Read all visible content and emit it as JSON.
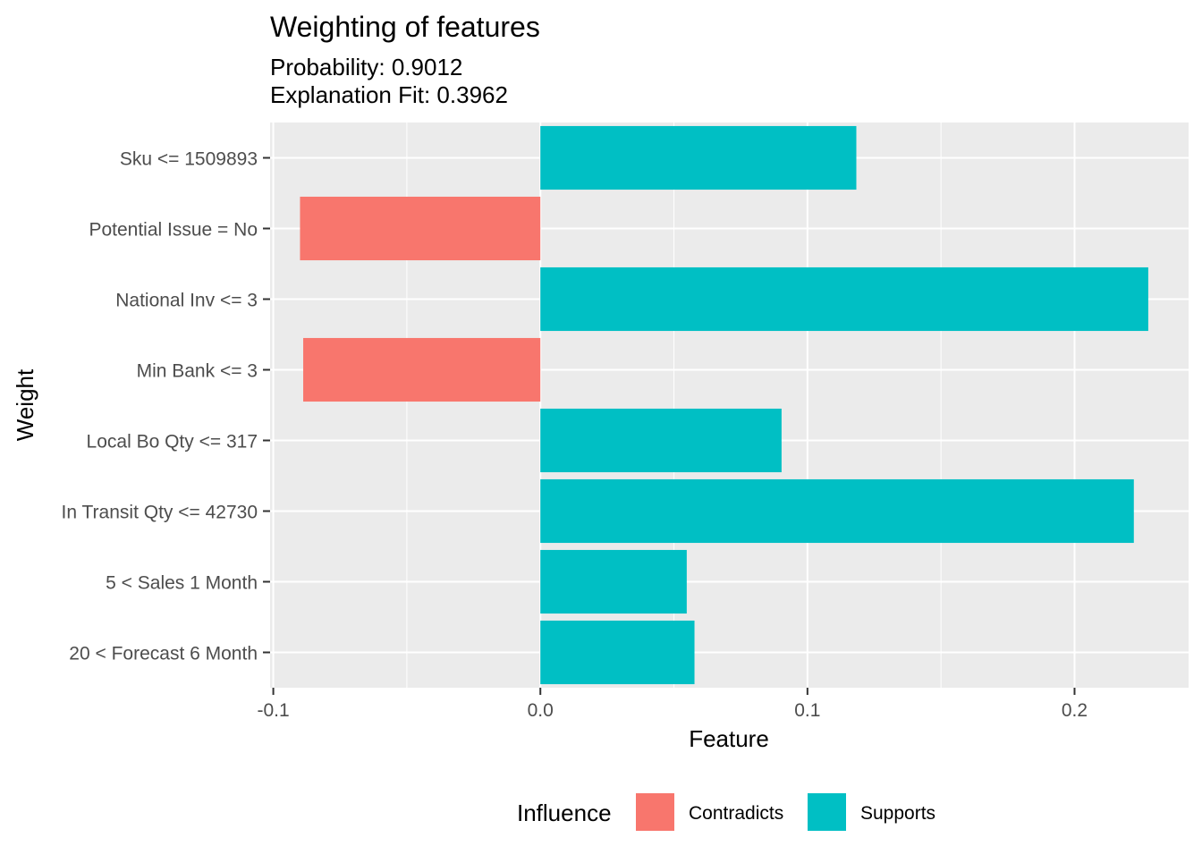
{
  "chart_data": {
    "type": "bar",
    "orientation": "horizontal",
    "title": "Weighting of features",
    "subtitle_lines": [
      "Probability: 0.9012",
      "Explanation Fit: 0.3962"
    ],
    "xlabel": "Feature",
    "ylabel": "Weight",
    "xlim": [
      -0.1012,
      0.2427
    ],
    "xticks": [
      -0.1,
      0.0,
      0.1,
      0.2
    ],
    "xtick_labels": [
      "-0.1",
      "0.0",
      "0.1",
      "0.2"
    ],
    "categories": [
      "Sku <= 1509893",
      "Potential Issue = No",
      "National Inv <= 3",
      "Min Bank <= 3",
      "Local Bo Qty <= 317",
      "In Transit Qty <= 42730",
      "5 < Sales 1 Month",
      "20 < Forecast 6 Month"
    ],
    "values": [
      0.1183,
      -0.09,
      0.2276,
      -0.0888,
      0.0903,
      0.2222,
      0.0548,
      0.0577
    ],
    "influence": [
      "Supports",
      "Contradicts",
      "Supports",
      "Contradicts",
      "Supports",
      "Supports",
      "Supports",
      "Supports"
    ],
    "legend": {
      "title": "Influence",
      "position": "bottom",
      "entries": [
        {
          "label": "Contradicts",
          "color": "#F8766D"
        },
        {
          "label": "Supports",
          "color": "#00BFC4"
        }
      ]
    },
    "colors": {
      "Contradicts": "#F8766D",
      "Supports": "#00BFC4",
      "panel_background": "#EBEBEB",
      "grid": "#FFFFFF"
    },
    "grid": true
  }
}
